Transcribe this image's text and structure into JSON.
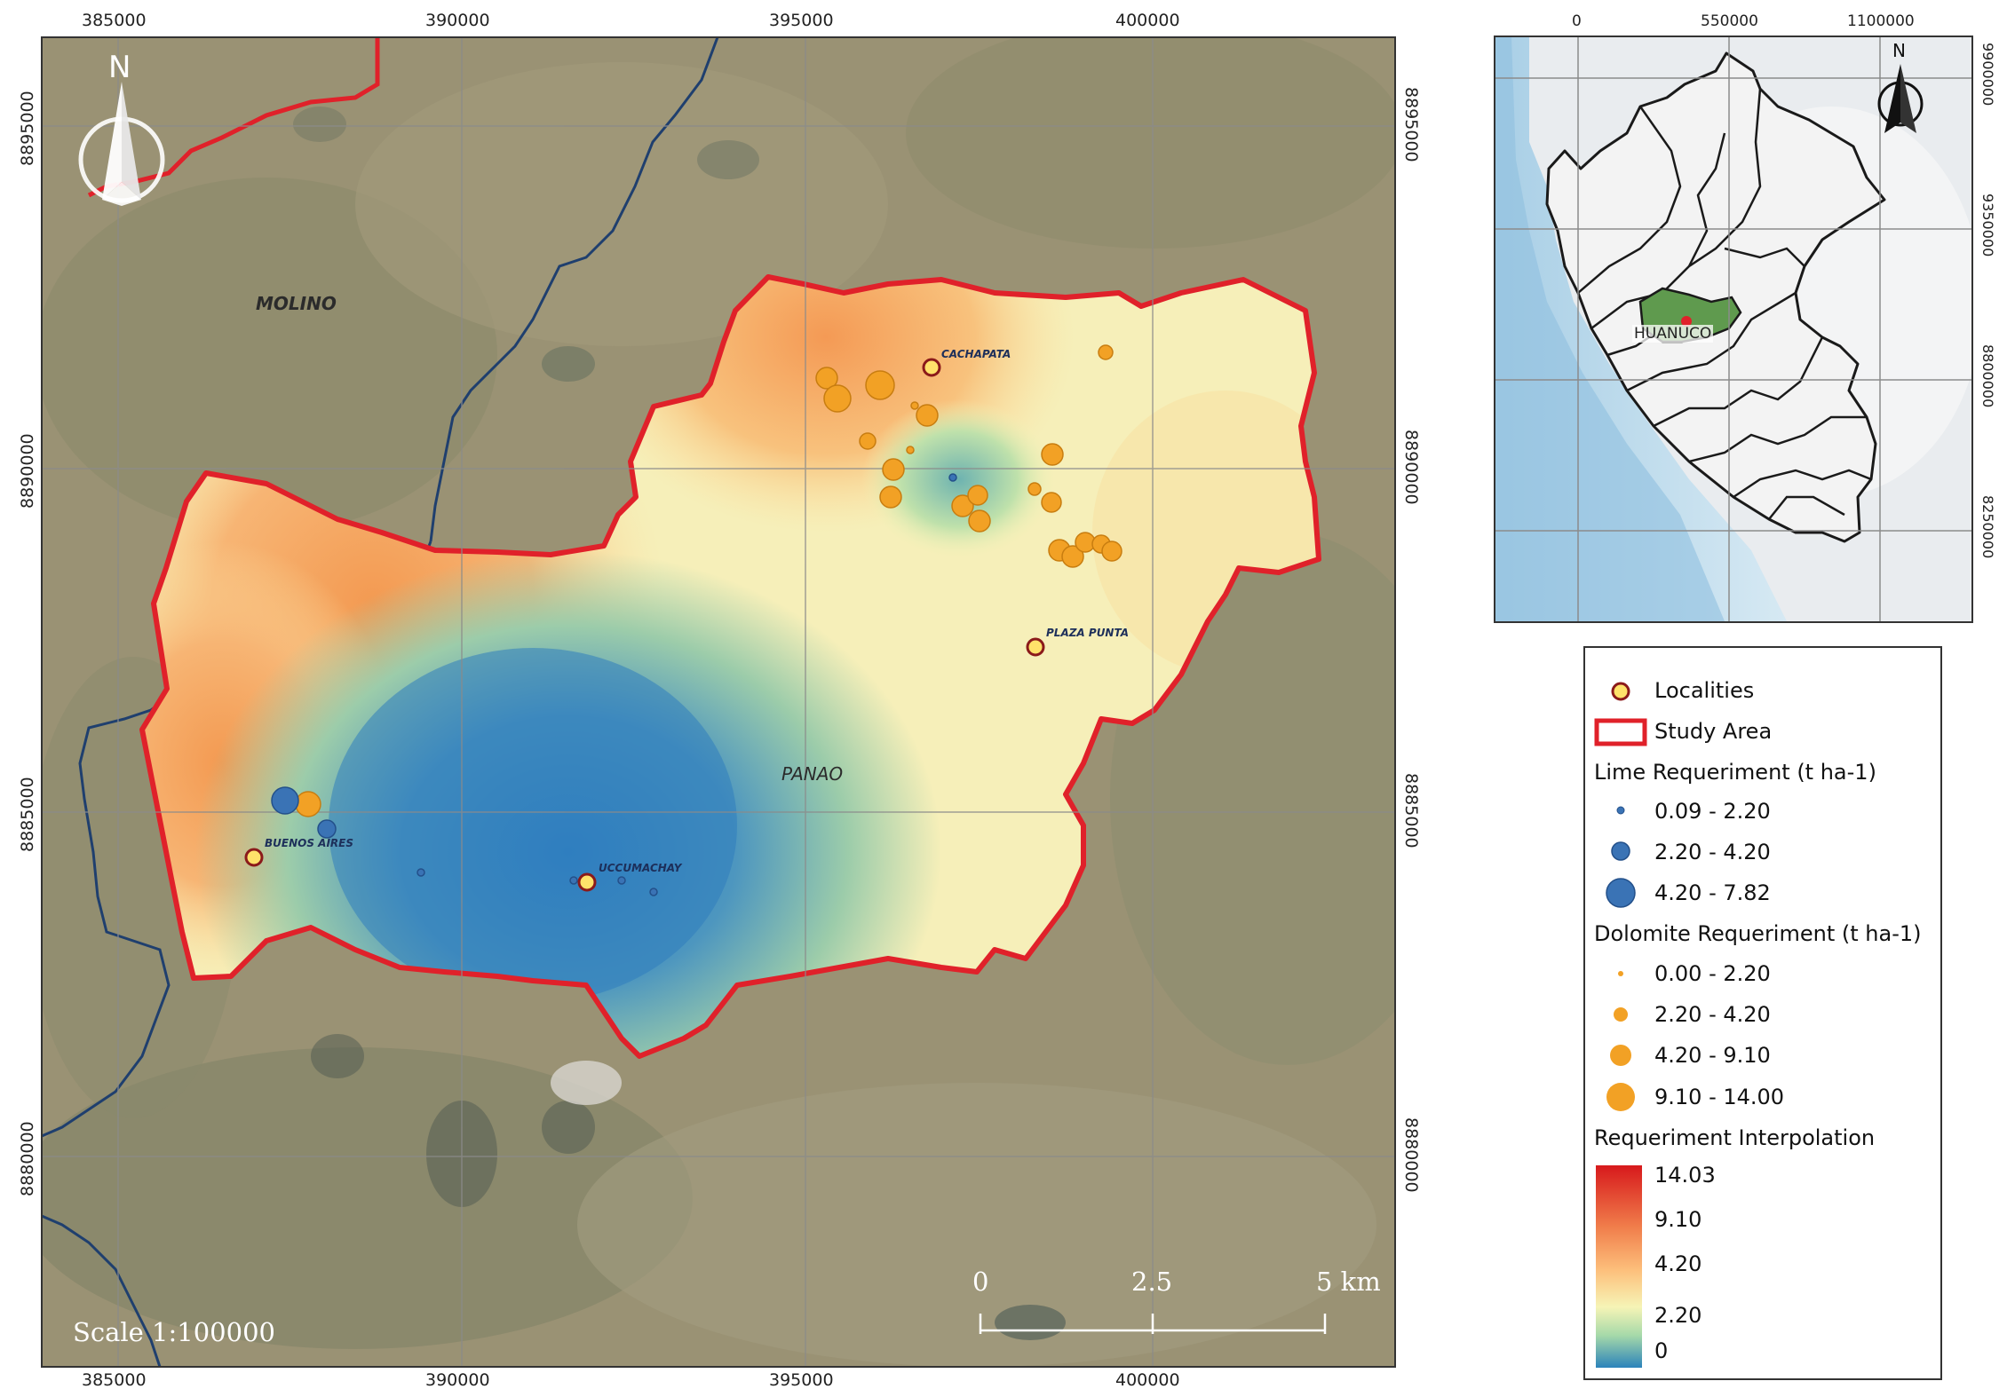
{
  "main_map": {
    "x_ticks": [
      "385000",
      "390000",
      "395000",
      "400000"
    ],
    "y_ticks": [
      "8895000",
      "8890000",
      "8885000",
      "8880000"
    ],
    "places": {
      "molino": "MOLINO",
      "panao": "PANAO",
      "cachapata": "CACHAPATA",
      "plaza_punta": "PLAZA PUNTA",
      "buenos_aires": "BUENOS AIRES",
      "uccumachay": "UCCUMACHAY"
    },
    "north_label": "N",
    "scale_text": "Scale 1:100000",
    "scale_bar": {
      "labels": [
        "0",
        "2.5",
        "5 km"
      ]
    }
  },
  "inset_map": {
    "x_ticks": [
      "0",
      "550000",
      "1100000"
    ],
    "y_ticks": [
      "9900000",
      "9350000",
      "8800000",
      "8250000"
    ],
    "region_label": "HUANUCO",
    "north_label": "N"
  },
  "legend": {
    "localities": "Localities",
    "study_area": "Study Area",
    "lime_title": "Lime Requeriment (t ha-1)",
    "lime_classes": [
      "0.09 - 2.20",
      "2.20 - 4.20",
      "4.20 - 7.82"
    ],
    "dolomite_title": "Dolomite Requeriment (t ha-1)",
    "dolomite_classes": [
      "0.00 - 2.20",
      "2.20 - 4.20",
      "4.20 - 9.10",
      "9.10 - 14.00"
    ],
    "interp_title": "Requeriment Interpolation",
    "ramp_labels": [
      "14.03",
      "9.10",
      "4.20",
      "2.20",
      "0"
    ]
  },
  "colors": {
    "study_area": "#e0212a",
    "lime": "#3a73b5",
    "dolomite": "#f2a125",
    "locality_fill": "#ffe26a",
    "locality_stroke": "#8b1a1a",
    "river": "#1f3f6e"
  }
}
